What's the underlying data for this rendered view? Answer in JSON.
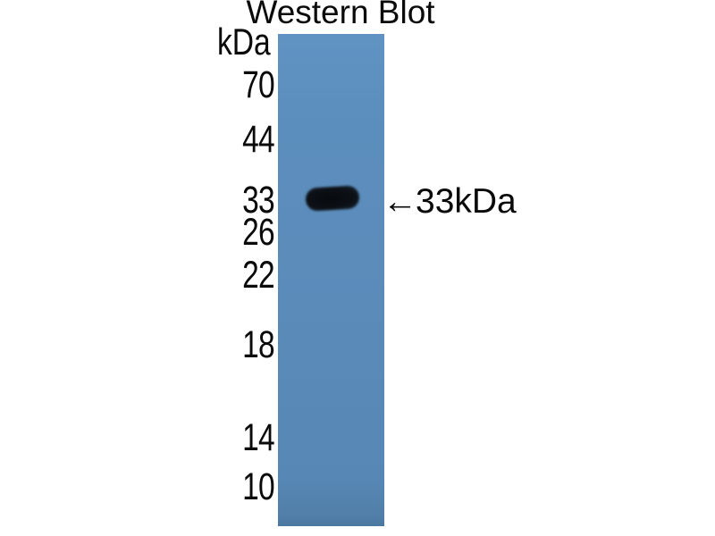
{
  "figure": {
    "title": "Western Blot",
    "unit_label": "kDa",
    "ladder_markers": [
      {
        "label": "70"
      },
      {
        "label": "44"
      },
      {
        "label": "33"
      },
      {
        "label": "26"
      },
      {
        "label": "22"
      },
      {
        "label": "18"
      },
      {
        "label": "14"
      },
      {
        "label": "10"
      }
    ],
    "band": {
      "annotation_arrow": "←",
      "annotation_label": "33kDa"
    },
    "colors": {
      "background": "#ffffff",
      "lane_blue": "#5b8bb9",
      "band_dark": "#0d1117",
      "text": "#0a0a0a"
    }
  }
}
